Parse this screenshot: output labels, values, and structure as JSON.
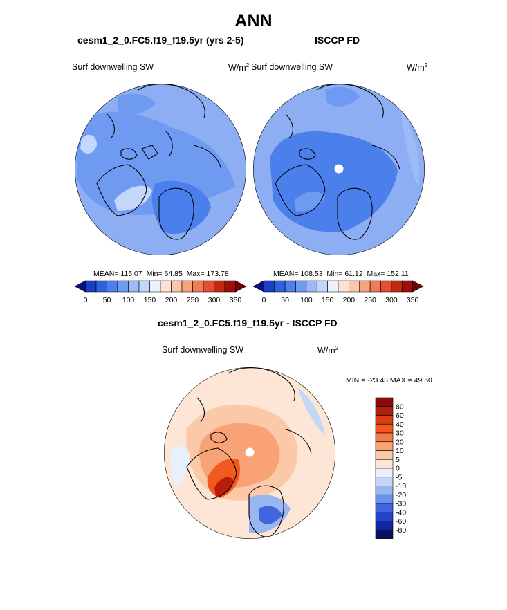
{
  "page": {
    "season": "ANN",
    "test_case_title": "cesm1_2_0.FC5.f19_f19.5yr (yrs 2-5)",
    "obs_title": "ISCCP FD",
    "diff_title": "cesm1_2_0.FC5.f19_f19.5yr - ISCCP FD"
  },
  "chart_data": [
    {
      "type": "heatmap",
      "projection": "north polar stereographic",
      "title": "cesm1_2_0.FC5.f19_f19.5yr (yrs 2-5)",
      "variable_label": "Surf downwelling SW",
      "units_base": "W/m",
      "units_exp": "2",
      "stats": {
        "mean": "MEAN= 115.07",
        "min": "Min=  64.85",
        "max": "Max= 173.78"
      },
      "colorbar": {
        "orientation": "horizontal",
        "ticks": [
          0,
          50,
          100,
          150,
          200,
          250,
          300,
          350
        ],
        "levels": [
          0,
          25,
          50,
          75,
          100,
          125,
          150,
          175,
          200,
          225,
          250,
          275,
          300,
          325,
          350
        ],
        "colors": [
          "#08108a",
          "#1a3fc4",
          "#2f62e0",
          "#4b80ec",
          "#6e9af2",
          "#9bbaf7",
          "#c3d6fb",
          "#eaf1fd",
          "#fde2d3",
          "#fbc5aa",
          "#f7a17f",
          "#f07b55",
          "#e14f2e",
          "#c22a16",
          "#9c0f0a",
          "#780004"
        ]
      }
    },
    {
      "type": "heatmap",
      "projection": "north polar stereographic",
      "title": "ISCCP FD",
      "variable_label": "Surf downwelling SW",
      "units_base": "W/m",
      "units_exp": "2",
      "stats": {
        "mean": "MEAN= 108.53",
        "min": "Min=  61.12",
        "max": "Max= 152.11"
      },
      "colorbar": {
        "orientation": "horizontal",
        "ticks": [
          0,
          50,
          100,
          150,
          200,
          250,
          300,
          350
        ],
        "levels": [
          0,
          25,
          50,
          75,
          100,
          125,
          150,
          175,
          200,
          225,
          250,
          275,
          300,
          325,
          350
        ],
        "colors": [
          "#08108a",
          "#1a3fc4",
          "#2f62e0",
          "#4b80ec",
          "#6e9af2",
          "#9bbaf7",
          "#c3d6fb",
          "#eaf1fd",
          "#fde2d3",
          "#fbc5aa",
          "#f7a17f",
          "#f07b55",
          "#e14f2e",
          "#c22a16",
          "#9c0f0a",
          "#780004"
        ]
      }
    },
    {
      "type": "heatmap",
      "projection": "north polar stereographic",
      "title": "cesm1_2_0.FC5.f19_f19.5yr - ISCCP FD",
      "variable_label": "Surf downwelling SW",
      "units_base": "W/m",
      "units_exp": "2",
      "stats": {
        "range": "MIN = -23.43 MAX =  49.50"
      },
      "colorbar": {
        "orientation": "vertical",
        "ticks": [
          80,
          60,
          40,
          30,
          20,
          10,
          5,
          0,
          -5,
          -10,
          -20,
          -30,
          -40,
          -60,
          -80
        ],
        "colors": [
          "#8a0a0a",
          "#b81c0c",
          "#dc3a12",
          "#f05a1e",
          "#f57c44",
          "#f9a276",
          "#fcc9a8",
          "#fde6d6",
          "#e8f0fb",
          "#c4d7f7",
          "#98b6f0",
          "#6c91e8",
          "#4065dd",
          "#2144c9",
          "#10279f",
          "#08125e"
        ]
      }
    }
  ]
}
